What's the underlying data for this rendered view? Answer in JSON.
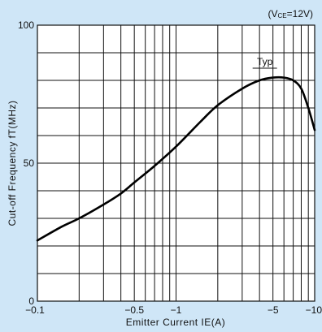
{
  "chart_data": {
    "type": "line",
    "title": "",
    "xlabel": "Emitter Current IE(A)",
    "ylabel": "Cut-off Frequency fT(MHz)",
    "x_scale": "log",
    "xlim": [
      -0.1,
      -10
    ],
    "ylim": [
      0,
      100
    ],
    "x_ticks": [
      {
        "value": -0.1,
        "label": "−0.1"
      },
      {
        "value": -0.5,
        "label": "−0.5"
      },
      {
        "value": -1,
        "label": "−1"
      },
      {
        "value": -5,
        "label": "−5"
      },
      {
        "value": -10,
        "label": "−10"
      }
    ],
    "y_ticks": [
      {
        "value": 0,
        "label": "0"
      },
      {
        "value": 50,
        "label": "50"
      },
      {
        "value": 100,
        "label": "100"
      }
    ],
    "y_grid_step": 10,
    "grid": true,
    "condition": {
      "text": "(VCE=12V)",
      "main": "(V",
      "sub": "CE",
      "rest": "=12V)"
    },
    "series": [
      {
        "name": "Typ",
        "x": [
          -0.1,
          -0.15,
          -0.2,
          -0.3,
          -0.4,
          -0.5,
          -0.7,
          -1,
          -1.5,
          -2,
          -3,
          -4,
          -5,
          -6,
          -7,
          -8,
          -9,
          -10
        ],
        "y": [
          22,
          27,
          30,
          35,
          39,
          43,
          49,
          56,
          65,
          71,
          77,
          80,
          81,
          81,
          80,
          77,
          70,
          62
        ]
      }
    ],
    "annotations": [
      {
        "text": "Typ",
        "x": -5,
        "y": 85
      }
    ]
  }
}
